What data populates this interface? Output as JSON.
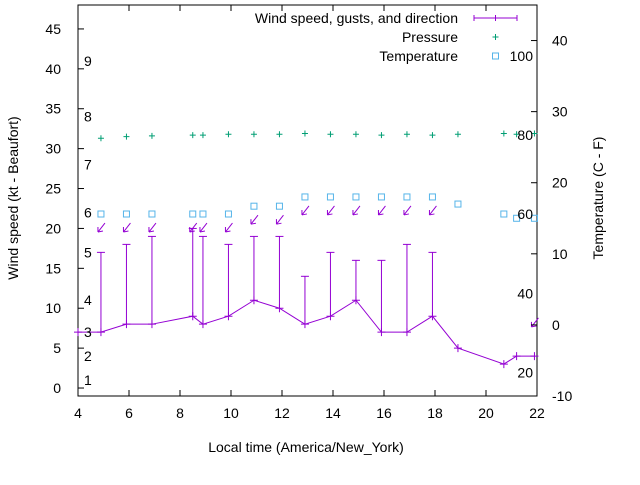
{
  "chart_data": {
    "type": "line",
    "xlabel": "Local time (America/New_York)",
    "ylabel_left": "Wind speed (kt - Beaufort)",
    "ylabel_right": "Temperature (C - F)",
    "xlim": [
      4,
      22
    ],
    "ylim_left": [
      -1,
      48
    ],
    "ylim_right": [
      -10,
      45
    ],
    "x_ticks": [
      "4",
      "6",
      "8",
      "10",
      "12",
      "14",
      "16",
      "18",
      "20",
      "22"
    ],
    "y_left_ticks": [
      "0",
      "5",
      "10",
      "15",
      "20",
      "25",
      "30",
      "35",
      "40",
      "45"
    ],
    "y_right_ticks": [
      "-10",
      "0",
      "10",
      "20",
      "30",
      "40"
    ],
    "beaufort_labels": [
      {
        "text": "1",
        "y": 1
      },
      {
        "text": "2",
        "y": 4
      },
      {
        "text": "3",
        "y": 7
      },
      {
        "text": "4",
        "y": 11
      },
      {
        "text": "5",
        "y": 17
      },
      {
        "text": "6",
        "y": 22
      },
      {
        "text": "7",
        "y": 28
      },
      {
        "text": "8",
        "y": 34
      },
      {
        "text": "9",
        "y": 41
      }
    ],
    "fahrenheit_labels": [
      {
        "text": "20",
        "c": -6.7
      },
      {
        "text": "40",
        "c": 4.4
      },
      {
        "text": "60",
        "c": 15.6
      },
      {
        "text": "80",
        "c": 26.7
      },
      {
        "text": "100",
        "c": 37.8
      }
    ],
    "legend_position": "top-right",
    "series": [
      {
        "name": "Wind speed, gusts, and direction",
        "color": "#9400d3",
        "x": [
          4.0,
          4.9,
          5.9,
          6.9,
          8.5,
          8.9,
          9.9,
          10.9,
          11.9,
          12.9,
          13.9,
          14.9,
          15.9,
          16.9,
          17.9,
          18.9,
          20.7,
          21.2,
          21.9
        ],
        "y": [
          7,
          7,
          8,
          8,
          9,
          8,
          9,
          11,
          10,
          8,
          9,
          11,
          7,
          7,
          9,
          5,
          3,
          4,
          4
        ],
        "gusts": [
          null,
          17,
          18,
          19,
          20,
          19,
          18,
          19,
          19,
          14,
          17,
          16,
          16,
          18,
          17,
          null,
          null,
          null,
          null
        ],
        "direction_arrows_x": [
          4.9,
          5.9,
          6.9,
          8.5,
          8.9,
          9.9,
          10.9,
          11.9,
          12.9,
          13.9,
          14.9,
          15.9,
          16.9,
          17.9,
          21.9
        ]
      },
      {
        "name": "Pressure",
        "color": "#009e73",
        "x": [
          4.9,
          5.9,
          6.9,
          8.5,
          8.9,
          9.9,
          10.9,
          11.9,
          12.9,
          13.9,
          14.9,
          15.9,
          16.9,
          17.9,
          18.9,
          20.7,
          21.2,
          21.9
        ],
        "y": [
          31.3,
          31.5,
          31.6,
          31.7,
          31.7,
          31.8,
          31.8,
          31.8,
          31.9,
          31.8,
          31.8,
          31.7,
          31.8,
          31.7,
          31.8,
          31.9,
          31.8,
          31.9
        ]
      },
      {
        "name": "Temperature",
        "color": "#56b4e9",
        "x": [
          4.9,
          5.9,
          6.9,
          8.5,
          8.9,
          9.9,
          10.9,
          11.9,
          12.9,
          13.9,
          14.9,
          15.9,
          16.9,
          17.9,
          18.9,
          20.7,
          21.2,
          21.9
        ],
        "y": [
          15.6,
          15.6,
          15.6,
          15.6,
          15.6,
          15.6,
          16.7,
          16.7,
          18.0,
          18.0,
          18.0,
          18.0,
          18.0,
          18.0,
          17.0,
          15.6,
          15.0,
          15.0
        ]
      }
    ]
  }
}
